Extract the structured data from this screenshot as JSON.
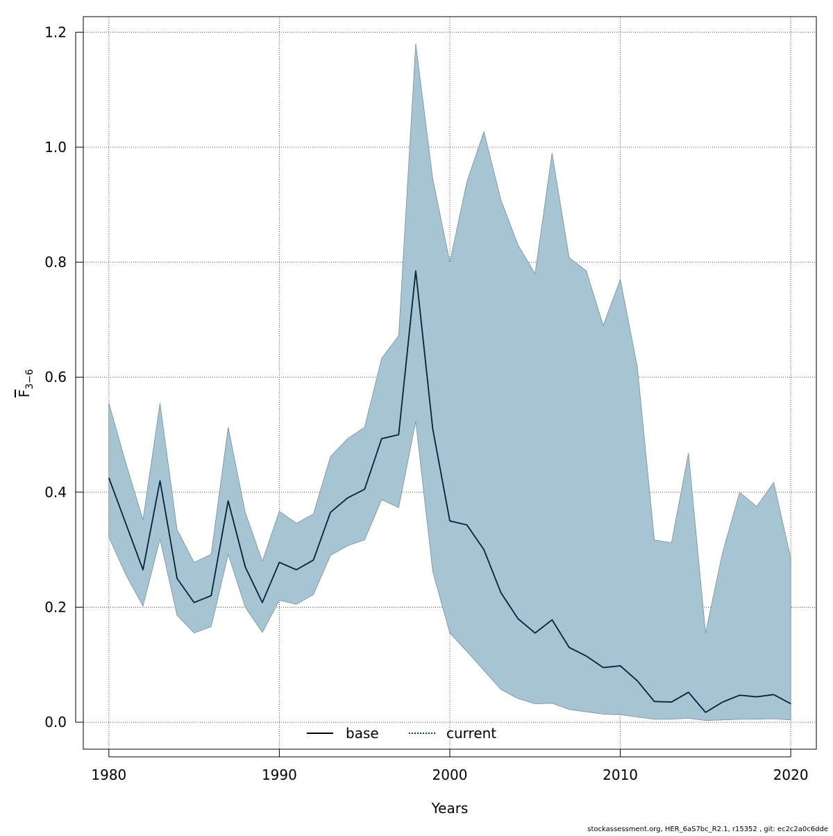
{
  "chart_data": {
    "type": "line",
    "xlabel": "Years",
    "ylabel": "F",
    "ylabel_sub": "3−6",
    "xlim": [
      1978.5,
      2021.5
    ],
    "ylim": [
      -0.047,
      1.227
    ],
    "x_ticks": [
      1980,
      1990,
      2000,
      2010,
      2020
    ],
    "y_ticks": [
      "0.0",
      "0.2",
      "0.4",
      "0.6",
      "0.8",
      "1.0",
      "1.2"
    ],
    "grid": true,
    "legend_position": "bottom-center",
    "legend": [
      {
        "label": "base",
        "style": "solid",
        "color": "#000000"
      },
      {
        "label": "current",
        "style": "dotted",
        "color": "#0a3a5c"
      }
    ],
    "band_color": "#a5c4d4",
    "band_stroke": "#7a8c99",
    "years": [
      1980,
      1981,
      1982,
      1983,
      1984,
      1985,
      1986,
      1987,
      1988,
      1989,
      1990,
      1991,
      1992,
      1993,
      1994,
      1995,
      1996,
      1997,
      1998,
      1999,
      2000,
      2001,
      2002,
      2003,
      2004,
      2005,
      2006,
      2007,
      2008,
      2009,
      2010,
      2011,
      2012,
      2013,
      2014,
      2015,
      2016,
      2017,
      2018,
      2019,
      2020
    ],
    "series": [
      {
        "name": "current",
        "values": [
          0.425,
          0.345,
          0.265,
          0.42,
          0.25,
          0.208,
          0.22,
          0.385,
          0.27,
          0.208,
          0.278,
          0.265,
          0.282,
          0.365,
          0.39,
          0.405,
          0.493,
          0.5,
          0.785,
          0.51,
          0.35,
          0.343,
          0.3,
          0.225,
          0.18,
          0.155,
          0.178,
          0.13,
          0.115,
          0.095,
          0.098,
          0.072,
          0.036,
          0.035,
          0.052,
          0.017,
          0.035,
          0.047,
          0.044,
          0.048,
          0.032
        ]
      },
      {
        "name": "base",
        "values": [
          0.425,
          0.345,
          0.265,
          0.42,
          0.25,
          0.208,
          0.22,
          0.385,
          0.27,
          0.208,
          0.278,
          0.265,
          0.282,
          0.365,
          0.39,
          0.405,
          0.493,
          0.5,
          0.785,
          0.51,
          0.35,
          0.343,
          0.3,
          0.225,
          0.18,
          0.155,
          0.178,
          0.13,
          0.115,
          0.095,
          0.098,
          0.072,
          0.036,
          0.035,
          0.052,
          0.017,
          0.035,
          0.047,
          0.044,
          0.048,
          0.032
        ]
      }
    ],
    "band_upper": [
      0.555,
      0.45,
      0.352,
      0.555,
      0.335,
      0.278,
      0.292,
      0.513,
      0.365,
      0.28,
      0.367,
      0.346,
      0.362,
      0.462,
      0.493,
      0.513,
      0.633,
      0.672,
      1.18,
      0.945,
      0.8,
      0.94,
      1.027,
      0.908,
      0.83,
      0.78,
      0.99,
      0.808,
      0.785,
      0.69,
      0.77,
      0.618,
      0.317,
      0.312,
      0.468,
      0.155,
      0.295,
      0.4,
      0.375,
      0.417,
      0.285
    ],
    "band_lower": [
      0.322,
      0.256,
      0.202,
      0.318,
      0.186,
      0.155,
      0.166,
      0.292,
      0.2,
      0.156,
      0.212,
      0.205,
      0.222,
      0.29,
      0.307,
      0.317,
      0.387,
      0.373,
      0.523,
      0.262,
      0.155,
      0.123,
      0.09,
      0.057,
      0.041,
      0.032,
      0.033,
      0.022,
      0.018,
      0.014,
      0.013,
      0.009,
      0.005,
      0.005,
      0.007,
      0.003,
      0.004,
      0.005,
      0.005,
      0.006,
      0.004
    ]
  },
  "footer": "stockassessment.org, HER_6aS7bc_R2.1, r15352 , git: ec2c2a0c6dde"
}
